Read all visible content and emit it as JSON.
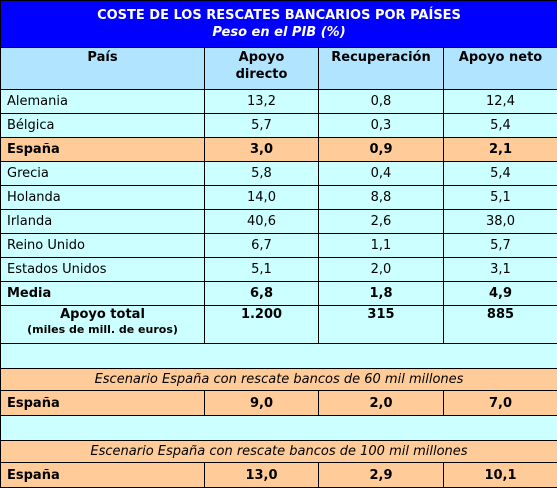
{
  "title": "COSTE DE LOS RESCATES BANCARIOS POR PAÍSES",
  "subtitle": "Peso en el PIB (%)",
  "headers": [
    "País",
    "Apoyo directo",
    "Recuperación",
    "Apoyo neto"
  ],
  "rows": [
    [
      "Alemania",
      "13,2",
      "0,8",
      "12,4"
    ],
    [
      "Bélgica",
      "5,7",
      "0,3",
      "5,4"
    ],
    [
      "España",
      "3,0",
      "0,9",
      "2,1"
    ],
    [
      "Grecia",
      "5,8",
      "0,4",
      "5,4"
    ],
    [
      "Holanda",
      "14,0",
      "8,8",
      "5,1"
    ],
    [
      "Irlanda",
      "40,6",
      "2,6",
      "38,0"
    ],
    [
      "Reino Unido",
      "6,7",
      "1,1",
      "5,7"
    ],
    [
      "Estados Unidos",
      "5,1",
      "2,0",
      "3,1"
    ]
  ],
  "media": [
    "Media",
    "6,8",
    "1,8",
    "4,9"
  ],
  "total": {
    "label": "Apoyo total",
    "sublabel": "(miles de mill. de euros)",
    "values": [
      "1.200",
      "315",
      "885"
    ]
  },
  "scenario_60": {
    "title": "Escenario España con rescate bancos de 60 mil millones",
    "row": [
      "España",
      "9,0",
      "2,0",
      "7,0"
    ]
  },
  "scenario_100": {
    "title": "Escenario España con rescate bancos de 100 mil millones",
    "row": [
      "España",
      "13,0",
      "2,9",
      "10,1"
    ]
  },
  "colors": {
    "title_bg": "#0000ff",
    "header_bg": "#b0e4ff",
    "row_bg": "#ccffff",
    "highlight_bg": "#ffcc99"
  }
}
